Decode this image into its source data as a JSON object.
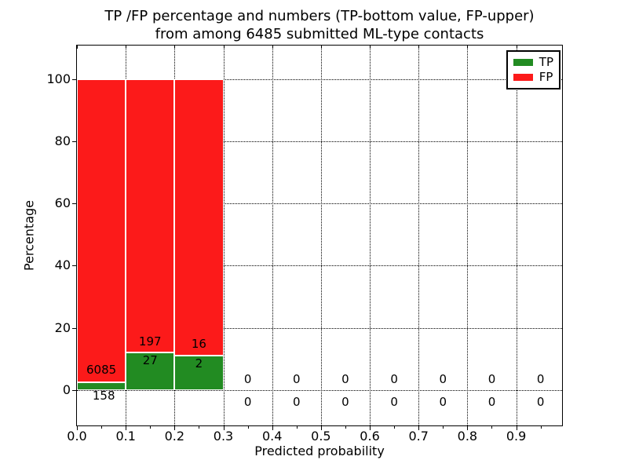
{
  "title": {
    "line1": "TP /FP percentage and numbers (TP-bottom value, FP-upper)",
    "line2": "from among 6485 submitted ML-type contacts"
  },
  "legend": {
    "items": [
      {
        "label": "TP",
        "color": "#228b22"
      },
      {
        "label": "FP",
        "color": "#fc1a1a"
      }
    ]
  },
  "colors": {
    "tp": "#228b22",
    "fp": "#fc1a1a",
    "grid": "#000000",
    "text": "#000000",
    "background": "#ffffff"
  },
  "chart_data": {
    "type": "bar",
    "stacked": true,
    "title": "TP /FP percentage and numbers (TP-bottom value, FP-upper) from among 6485 submitted ML-type contacts",
    "xlabel": "Predicted probability",
    "ylabel": "Percentage",
    "total_contacts": 6485,
    "xlim": [
      0,
      0.994
    ],
    "ylim": [
      -11.4,
      110.8
    ],
    "bin_width": 0.1,
    "grid": true,
    "x_tick_labels": [
      "0.0",
      "0.1",
      "0.2",
      "0.3",
      "0.4",
      "0.5",
      "0.6",
      "0.7",
      "0.8",
      "0.9"
    ],
    "x_tick_values": [
      0,
      0.1,
      0.2,
      0.3,
      0.4,
      0.5,
      0.6,
      0.7,
      0.8,
      0.9
    ],
    "x_minor_tick_values": [
      0.05,
      0.15,
      0.25,
      0.35,
      0.45,
      0.55,
      0.65,
      0.75,
      0.85,
      0.95
    ],
    "y_tick_values": [
      0,
      20,
      40,
      60,
      80,
      100
    ],
    "categories": [
      "0.0-0.1",
      "0.1-0.2",
      "0.2-0.3",
      "0.3-0.4",
      "0.4-0.5",
      "0.5-0.6",
      "0.6-0.7",
      "0.7-0.8",
      "0.8-0.9",
      "0.9-1.0"
    ],
    "series": [
      {
        "name": "TP",
        "color": "#228b22",
        "values": [
          2.53,
          12.05,
          11.11,
          0,
          0,
          0,
          0,
          0,
          0,
          0
        ]
      },
      {
        "name": "FP",
        "color": "#fc1a1a",
        "values": [
          97.47,
          87.95,
          88.89,
          0,
          0,
          0,
          0,
          0,
          0,
          0
        ]
      }
    ],
    "bins": [
      {
        "x_start": 0.0,
        "tp_count": 158,
        "fp_count": 6085,
        "tp_pct": 2.53,
        "fp_pct": 97.47
      },
      {
        "x_start": 0.1,
        "tp_count": 27,
        "fp_count": 197,
        "tp_pct": 12.05,
        "fp_pct": 87.95
      },
      {
        "x_start": 0.2,
        "tp_count": 2,
        "fp_count": 16,
        "tp_pct": 11.11,
        "fp_pct": 88.89
      },
      {
        "x_start": 0.3,
        "tp_count": 0,
        "fp_count": 0,
        "tp_pct": 0,
        "fp_pct": 0
      },
      {
        "x_start": 0.4,
        "tp_count": 0,
        "fp_count": 0,
        "tp_pct": 0,
        "fp_pct": 0
      },
      {
        "x_start": 0.5,
        "tp_count": 0,
        "fp_count": 0,
        "tp_pct": 0,
        "fp_pct": 0
      },
      {
        "x_start": 0.6,
        "tp_count": 0,
        "fp_count": 0,
        "tp_pct": 0,
        "fp_pct": 0
      },
      {
        "x_start": 0.7,
        "tp_count": 0,
        "fp_count": 0,
        "tp_pct": 0,
        "fp_pct": 0
      },
      {
        "x_start": 0.8,
        "tp_count": 0,
        "fp_count": 0,
        "tp_pct": 0,
        "fp_pct": 0
      },
      {
        "x_start": 0.9,
        "tp_count": 0,
        "fp_count": 0,
        "tp_pct": 0,
        "fp_pct": 0
      }
    ],
    "annotations": [
      {
        "x": 0.05,
        "y": 6.4,
        "text": "6085"
      },
      {
        "x": 0.055,
        "y": -1.7,
        "text": "158"
      },
      {
        "x": 0.15,
        "y": 15.6,
        "text": "197"
      },
      {
        "x": 0.15,
        "y": 9.5,
        "text": "27"
      },
      {
        "x": 0.25,
        "y": 14.8,
        "text": "16"
      },
      {
        "x": 0.25,
        "y": 8.5,
        "text": "2"
      },
      {
        "x": 0.35,
        "y": 3.4,
        "text": "0"
      },
      {
        "x": 0.45,
        "y": 3.4,
        "text": "0"
      },
      {
        "x": 0.55,
        "y": 3.4,
        "text": "0"
      },
      {
        "x": 0.65,
        "y": 3.4,
        "text": "0"
      },
      {
        "x": 0.75,
        "y": 3.4,
        "text": "0"
      },
      {
        "x": 0.85,
        "y": 3.4,
        "text": "0"
      },
      {
        "x": 0.95,
        "y": 3.4,
        "text": "0"
      },
      {
        "x": 0.35,
        "y": -3.7,
        "text": "0"
      },
      {
        "x": 0.45,
        "y": -3.7,
        "text": "0"
      },
      {
        "x": 0.55,
        "y": -3.7,
        "text": "0"
      },
      {
        "x": 0.65,
        "y": -3.7,
        "text": "0"
      },
      {
        "x": 0.75,
        "y": -3.7,
        "text": "0"
      },
      {
        "x": 0.85,
        "y": -3.7,
        "text": "0"
      },
      {
        "x": 0.95,
        "y": -3.7,
        "text": "0"
      }
    ]
  }
}
